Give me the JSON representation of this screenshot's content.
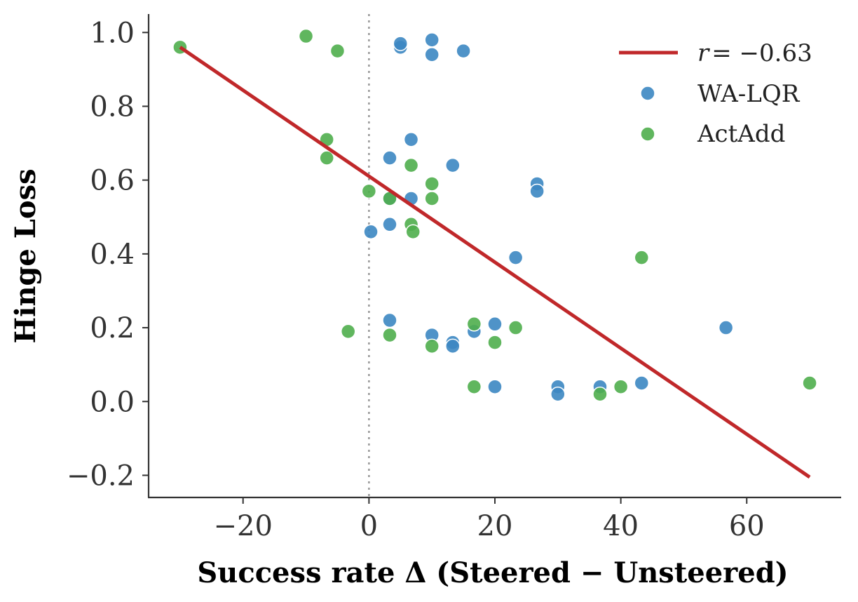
{
  "chart_data": {
    "type": "scatter",
    "title": "",
    "xlabel": "Success rate Δ (Steered − Unsteered)",
    "ylabel": "Hinge Loss",
    "xlim": [
      -35,
      75
    ],
    "ylim": [
      -0.26,
      1.05
    ],
    "xticks": [
      -20,
      0,
      20,
      40,
      60
    ],
    "xtick_labels": [
      "−20",
      "0",
      "20",
      "40",
      "60"
    ],
    "yticks": [
      -0.2,
      0.0,
      0.2,
      0.4,
      0.6,
      0.8,
      1.0
    ],
    "ytick_labels": [
      "−0.2",
      "0.0",
      "0.2",
      "0.4",
      "0.6",
      "0.8",
      "1.0"
    ],
    "grid": false,
    "legend_position": "top-right",
    "reference_line": {
      "x": 0,
      "style": "dotted",
      "color": "#999999"
    },
    "fit_line": {
      "label_prefix": "r",
      "label_value": "= −0.63",
      "x": [
        -30,
        70
      ],
      "y": [
        0.96,
        -0.205
      ],
      "color": "#c0282a"
    },
    "series": [
      {
        "name": "WA-LQR",
        "color": "#3c87c2",
        "points": [
          [
            5,
            0.96
          ],
          [
            5,
            0.97
          ],
          [
            10,
            0.98
          ],
          [
            10,
            0.94
          ],
          [
            15,
            0.95
          ],
          [
            6.7,
            0.71
          ],
          [
            3.3,
            0.66
          ],
          [
            13.3,
            0.64
          ],
          [
            26.7,
            0.59
          ],
          [
            26.7,
            0.57
          ],
          [
            3.3,
            0.55
          ],
          [
            6.7,
            0.55
          ],
          [
            3.3,
            0.48
          ],
          [
            0.3,
            0.46
          ],
          [
            23.3,
            0.39
          ],
          [
            3.3,
            0.22
          ],
          [
            10,
            0.18
          ],
          [
            13.3,
            0.16
          ],
          [
            13.3,
            0.15
          ],
          [
            16.7,
            0.19
          ],
          [
            20,
            0.21
          ],
          [
            56.7,
            0.2
          ],
          [
            20,
            0.04
          ],
          [
            30,
            0.04
          ],
          [
            30,
            0.02
          ],
          [
            36.7,
            0.04
          ],
          [
            43.3,
            0.05
          ]
        ]
      },
      {
        "name": "ActAdd",
        "color": "#4fae4c",
        "points": [
          [
            -30,
            0.96
          ],
          [
            -10,
            0.99
          ],
          [
            -5,
            0.95
          ],
          [
            -6.7,
            0.71
          ],
          [
            -6.7,
            0.66
          ],
          [
            6.7,
            0.64
          ],
          [
            10,
            0.59
          ],
          [
            0,
            0.57
          ],
          [
            3.3,
            0.55
          ],
          [
            10,
            0.55
          ],
          [
            6.7,
            0.48
          ],
          [
            7,
            0.46
          ],
          [
            43.3,
            0.39
          ],
          [
            -3.3,
            0.19
          ],
          [
            3.3,
            0.18
          ],
          [
            10,
            0.15
          ],
          [
            16.7,
            0.21
          ],
          [
            20,
            0.16
          ],
          [
            23.3,
            0.2
          ],
          [
            16.7,
            0.04
          ],
          [
            36.7,
            0.02
          ],
          [
            40,
            0.04
          ],
          [
            70,
            0.05
          ]
        ]
      }
    ]
  }
}
